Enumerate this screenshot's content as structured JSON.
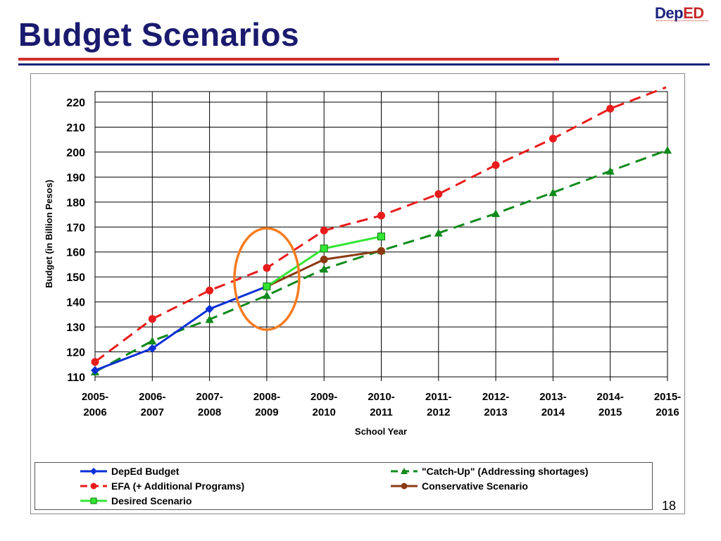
{
  "slide": {
    "title": "Budget Scenarios",
    "logo": {
      "prefix": "Dep",
      "suffix": "ED"
    },
    "page_number": "18"
  },
  "colors": {
    "title": "#1a1a6e",
    "rule_red": "#d32f2f",
    "rule_navy": "#1a237e"
  },
  "chart_data": {
    "type": "line",
    "title": "",
    "xlabel": "School Year",
    "ylabel": "Budget (in Billion Pesos)",
    "ylim": [
      110,
      220
    ],
    "yticks": [
      110,
      120,
      130,
      140,
      150,
      160,
      170,
      180,
      190,
      200,
      210,
      220
    ],
    "grid": true,
    "legend_position": "bottom",
    "categories": [
      [
        "2005-",
        "2006"
      ],
      [
        "2006-",
        "2007"
      ],
      [
        "2007-",
        "2008"
      ],
      [
        "2008-",
        "2009"
      ],
      [
        "2009-",
        "2010"
      ],
      [
        "2010-",
        "2011"
      ],
      [
        "2011-",
        "2012"
      ],
      [
        "2012-",
        "2013"
      ],
      [
        "2013-",
        "2014"
      ],
      [
        "2014-",
        "2015"
      ],
      [
        "2015-",
        "2016"
      ]
    ],
    "series": [
      {
        "name": "DepEd Budget",
        "color": "#0a2fd6",
        "marker": "diamond",
        "dashed": false,
        "values": [
          112.6,
          121.4,
          137.2,
          146.2,
          null,
          null,
          null,
          null,
          null,
          null,
          null
        ]
      },
      {
        "name": "EFA (+ Additional Programs)",
        "color": "#e81c1c",
        "marker": "circle",
        "dashed": true,
        "values": [
          116.0,
          133.2,
          144.6,
          153.6,
          168.6,
          174.6,
          183.2,
          194.8,
          205.4,
          217.4,
          227.0
        ]
      },
      {
        "name": "Desired Scenario",
        "color": "#33e533",
        "marker": "square",
        "dashed": false,
        "values": [
          null,
          null,
          null,
          146.2,
          161.4,
          166.2,
          null,
          null,
          null,
          null,
          null
        ]
      },
      {
        "name": "\"Catch-Up\" (Addressing shortages)",
        "color": "#0f8a1c",
        "marker": "triangle",
        "dashed": true,
        "values": [
          112.0,
          124.4,
          133.0,
          142.6,
          153.2,
          160.6,
          167.6,
          175.4,
          183.8,
          192.4,
          200.8
        ]
      },
      {
        "name": "Conservative Scenario",
        "color": "#8b3a12",
        "marker": "circle",
        "dashed": false,
        "values": [
          null,
          null,
          null,
          146.2,
          157.0,
          160.4,
          null,
          null,
          null,
          null,
          null
        ]
      }
    ],
    "annotations": [
      {
        "type": "ellipse",
        "category_index": 3,
        "color": "#f57c1f"
      }
    ]
  }
}
